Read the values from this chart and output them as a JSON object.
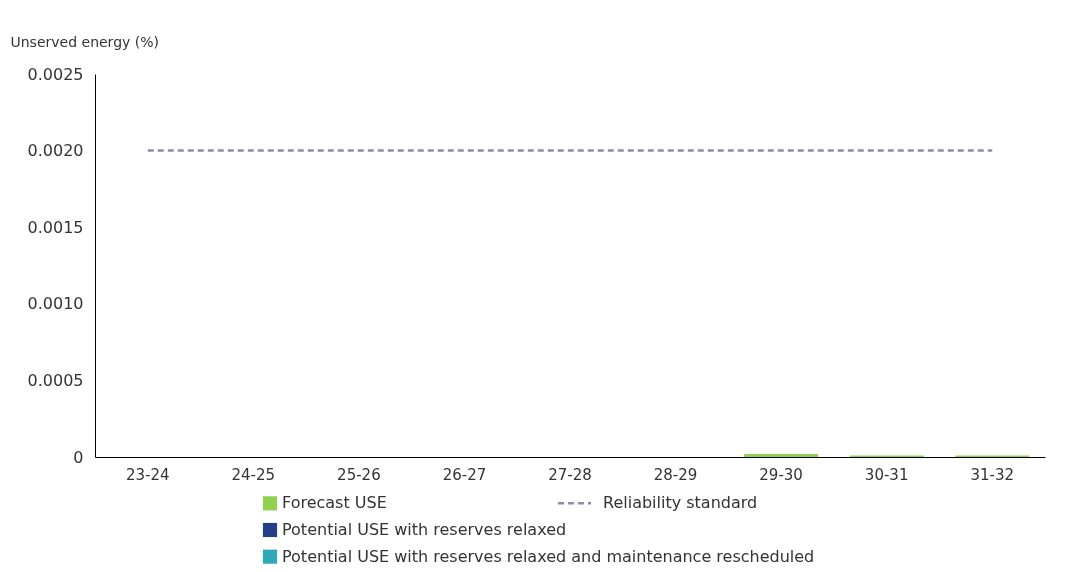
{
  "chart_data": {
    "type": "bar",
    "stacked": true,
    "ylabel": "Unserved energy (%)",
    "categories": [
      "23-24",
      "24-25",
      "25-26",
      "26-27",
      "27-28",
      "28-29",
      "29-30",
      "30-31",
      "31-32"
    ],
    "series": [
      {
        "name": "Forecast USE",
        "color": "#92d050",
        "values": [
          0,
          0,
          0,
          0,
          0,
          0,
          2e-05,
          1e-05,
          1e-05
        ]
      },
      {
        "name": "Potential USE with reserves relaxed",
        "color": "#253e8c",
        "values": [
          0,
          0,
          0,
          0,
          0,
          0,
          0,
          0,
          0
        ]
      },
      {
        "name": "Potential USE with reserves relaxed and maintenance rescheduled",
        "color": "#2fa8b8",
        "values": [
          0,
          0,
          0,
          0,
          0,
          0,
          0,
          0,
          0
        ]
      }
    ],
    "ref_lines": [
      {
        "axis": "y",
        "value": 0.002,
        "label": "Reliability standard",
        "color": "#8e8aae",
        "line_style": "dashed"
      }
    ],
    "ylim": [
      0,
      0.0025
    ],
    "yticks": [
      0,
      0.0005,
      {
        "value": 0.001,
        "label": "0.0010"
      },
      {
        "value": 0.0015,
        "label": "0.0015"
      },
      {
        "value": 0.002,
        "label": "0.0020"
      },
      {
        "value": 0.0025,
        "label": "0.0025"
      }
    ],
    "grid": false,
    "legend": "bottom"
  }
}
